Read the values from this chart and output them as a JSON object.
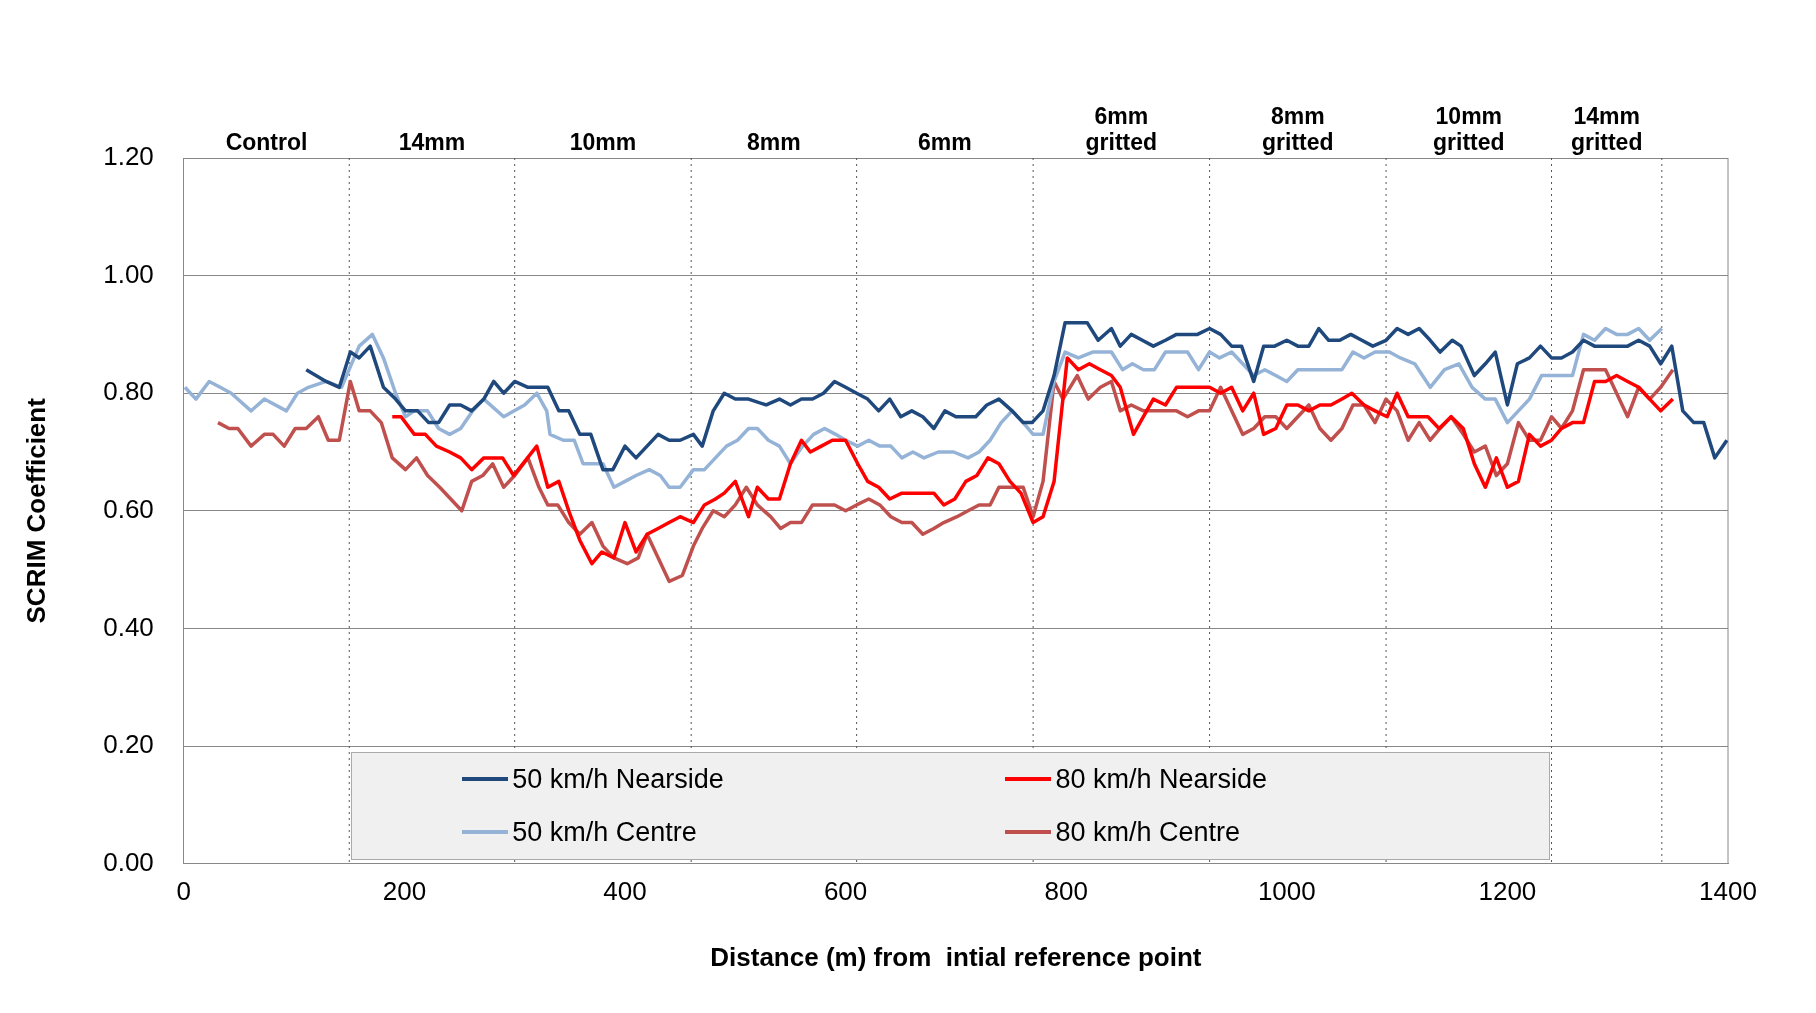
{
  "chart_data": {
    "type": "line",
    "xlabel": "Distance (m) from  intial reference point",
    "ylabel": "SCRIM Coefficient",
    "xlim": [
      0,
      1400
    ],
    "xticks": [
      0,
      200,
      400,
      600,
      800,
      1000,
      1200,
      1400
    ],
    "ylim": [
      0,
      1.2
    ],
    "yticks": [
      {
        "value": 0,
        "label": "0.00"
      },
      {
        "value": 0.2,
        "label": "0.20"
      },
      {
        "value": 0.4,
        "label": "0.40"
      },
      {
        "value": 0.6,
        "label": "0.60"
      },
      {
        "value": 0.8,
        "label": "0.80"
      },
      {
        "value": 1,
        "label": "1.00"
      },
      {
        "value": 1.2,
        "label": "1.20"
      }
    ],
    "grid": "y",
    "legend": "bottom",
    "marker": "none",
    "line_style": "solid",
    "ref_lines": [
      {
        "axis": "x",
        "value": 150,
        "line_style": "dotted"
      },
      {
        "axis": "x",
        "value": 300,
        "line_style": "dotted"
      },
      {
        "axis": "x",
        "value": 460,
        "line_style": "dotted"
      },
      {
        "axis": "x",
        "value": 610,
        "line_style": "dotted"
      },
      {
        "axis": "x",
        "value": 770,
        "line_style": "dotted"
      },
      {
        "axis": "x",
        "value": 930,
        "line_style": "dotted"
      },
      {
        "axis": "x",
        "value": 1090,
        "line_style": "dotted"
      },
      {
        "axis": "x",
        "value": 1240,
        "line_style": "dotted"
      },
      {
        "axis": "x",
        "value": 1340,
        "line_style": "dotted"
      }
    ],
    "annotations": [
      "Control",
      "14mm",
      "10mm",
      "8mm",
      "6mm",
      "6mm gritted",
      "8mm gritted",
      "10mm gritted",
      "14mm gritted"
    ],
    "series": [
      {
        "name": "50 km/h Nearside",
        "color": "#1f497d",
        "x": [
          111,
          129,
          141,
          151,
          159,
          169,
          181,
          192,
          201,
          212,
          222,
          231,
          241,
          251,
          261,
          272,
          281,
          290,
          300,
          312,
          320,
          330,
          340,
          349,
          359,
          369,
          380,
          389,
          400,
          410,
          420,
          430,
          440,
          450,
          462,
          470,
          480,
          490,
          500,
          512,
          528,
          540,
          550,
          560,
          570,
          580,
          590,
          600,
          610,
          620,
          630,
          640,
          650,
          660,
          670,
          680,
          690,
          700,
          709,
          718,
          728,
          739,
          751,
          761,
          769,
          779,
          789,
          799,
          819,
          829,
          841,
          849,
          859,
          869,
          879,
          890,
          900,
          919,
          930,
          940,
          950,
          959,
          970,
          979,
          989,
          1000,
          1010,
          1020,
          1029,
          1038,
          1048,
          1058,
          1068,
          1078,
          1090,
          1100,
          1110,
          1120,
          1130,
          1139,
          1150,
          1158,
          1170,
          1180,
          1189,
          1200,
          1209,
          1220,
          1230,
          1240,
          1249,
          1259,
          1269,
          1279,
          1289,
          1299,
          1309,
          1319,
          1329,
          1339,
          1349,
          1359,
          1369,
          1378,
          1388,
          1399
        ],
        "values": [
          0.84,
          0.82,
          0.81,
          0.87,
          0.86,
          0.88,
          0.81,
          0.79,
          0.77,
          0.77,
          0.75,
          0.75,
          0.78,
          0.78,
          0.77,
          0.79,
          0.82,
          0.8,
          0.82,
          0.81,
          0.81,
          0.81,
          0.77,
          0.77,
          0.73,
          0.73,
          0.67,
          0.67,
          0.71,
          0.69,
          0.71,
          0.73,
          0.72,
          0.72,
          0.73,
          0.71,
          0.77,
          0.8,
          0.79,
          0.79,
          0.78,
          0.79,
          0.78,
          0.79,
          0.79,
          0.8,
          0.82,
          0.81,
          0.8,
          0.79,
          0.77,
          0.79,
          0.76,
          0.77,
          0.76,
          0.74,
          0.77,
          0.76,
          0.76,
          0.76,
          0.78,
          0.79,
          0.77,
          0.75,
          0.75,
          0.77,
          0.83,
          0.92,
          0.92,
          0.89,
          0.91,
          0.88,
          0.9,
          0.89,
          0.88,
          0.89,
          0.9,
          0.9,
          0.91,
          0.9,
          0.88,
          0.88,
          0.82,
          0.88,
          0.88,
          0.89,
          0.88,
          0.88,
          0.91,
          0.89,
          0.89,
          0.9,
          0.89,
          0.88,
          0.89,
          0.91,
          0.9,
          0.91,
          0.89,
          0.87,
          0.89,
          0.88,
          0.83,
          0.85,
          0.87,
          0.78,
          0.85,
          0.86,
          0.88,
          0.86,
          0.86,
          0.87,
          0.89,
          0.88,
          0.88,
          0.88,
          0.88,
          0.89,
          0.88,
          0.85,
          0.88,
          0.77,
          0.75,
          0.75,
          0.69,
          0.72
        ]
      },
      {
        "name": "80 km/h Nearside",
        "color": "#ff0000",
        "x": [
          189,
          197,
          209,
          219,
          229,
          241,
          251,
          261,
          272,
          289,
          299,
          320,
          330,
          340,
          349,
          359,
          370,
          379,
          390,
          400,
          410,
          420,
          430,
          440,
          450,
          462,
          472,
          482,
          490,
          500,
          512,
          520,
          530,
          540,
          550,
          560,
          568,
          578,
          588,
          600,
          611,
          620,
          630,
          640,
          651,
          663,
          680,
          689,
          699,
          709,
          719,
          729,
          739,
          749,
          759,
          770,
          779,
          789,
          801,
          811,
          821,
          831,
          841,
          849,
          861,
          870,
          879,
          890,
          900,
          910,
          920,
          930,
          940,
          950,
          960,
          970,
          979,
          990,
          1000,
          1010,
          1020,
          1030,
          1040,
          1050,
          1059,
          1070,
          1080,
          1091,
          1100,
          1110,
          1128,
          1138,
          1149,
          1160,
          1170,
          1180,
          1190,
          1200,
          1210,
          1220,
          1230,
          1240,
          1249,
          1259,
          1269,
          1279,
          1289,
          1299,
          1309,
          1319,
          1329,
          1339,
          1350
        ],
        "values": [
          0.76,
          0.76,
          0.73,
          0.73,
          0.71,
          0.7,
          0.69,
          0.67,
          0.69,
          0.69,
          0.66,
          0.71,
          0.64,
          0.65,
          0.6,
          0.55,
          0.51,
          0.53,
          0.52,
          0.58,
          0.53,
          0.56,
          0.57,
          0.58,
          0.59,
          0.58,
          0.61,
          0.62,
          0.63,
          0.65,
          0.59,
          0.64,
          0.62,
          0.62,
          0.68,
          0.72,
          0.7,
          0.71,
          0.72,
          0.72,
          0.68,
          0.65,
          0.64,
          0.62,
          0.63,
          0.63,
          0.63,
          0.61,
          0.62,
          0.65,
          0.66,
          0.69,
          0.68,
          0.65,
          0.63,
          0.58,
          0.59,
          0.65,
          0.86,
          0.84,
          0.85,
          0.84,
          0.83,
          0.81,
          0.73,
          0.76,
          0.79,
          0.78,
          0.81,
          0.81,
          0.81,
          0.81,
          0.8,
          0.81,
          0.77,
          0.8,
          0.73,
          0.74,
          0.78,
          0.78,
          0.77,
          0.78,
          0.78,
          0.79,
          0.8,
          0.78,
          0.77,
          0.76,
          0.8,
          0.76,
          0.76,
          0.74,
          0.76,
          0.74,
          0.68,
          0.64,
          0.69,
          0.64,
          0.65,
          0.73,
          0.71,
          0.72,
          0.74,
          0.75,
          0.75,
          0.82,
          0.82,
          0.83,
          0.82,
          0.81,
          0.79,
          0.77,
          0.79
        ]
      },
      {
        "name": "50 km/h Centre",
        "color": "#95b3d7",
        "x": [
          1,
          11,
          23,
          33,
          43,
          61,
          73,
          93,
          103,
          113,
          129,
          143,
          159,
          171,
          181,
          192,
          201,
          209,
          221,
          231,
          241,
          251,
          262,
          272,
          290,
          309,
          320,
          329,
          332,
          344,
          354,
          362,
          380,
          390,
          400,
          410,
          422,
          432,
          440,
          450,
          462,
          472,
          482,
          492,
          502,
          512,
          520,
          530,
          540,
          550,
          561,
          571,
          581,
          591,
          600,
          611,
          621,
          631,
          641,
          651,
          661,
          671,
          684,
          698,
          711,
          721,
          731,
          741,
          751,
          761,
          770,
          779,
          789,
          799,
          811,
          824,
          841,
          851,
          860,
          870,
          880,
          890,
          900,
          910,
          920,
          930,
          939,
          950,
          960,
          970,
          980,
          990,
          1000,
          1010,
          1020,
          1038,
          1050,
          1060,
          1070,
          1080,
          1093,
          1103,
          1116,
          1130,
          1143,
          1156,
          1168,
          1180,
          1189,
          1200,
          1210,
          1220,
          1231,
          1249,
          1259,
          1269,
          1279,
          1289,
          1299,
          1309,
          1319,
          1329,
          1340
        ],
        "values": [
          0.81,
          0.79,
          0.82,
          0.81,
          0.8,
          0.77,
          0.79,
          0.77,
          0.8,
          0.81,
          0.82,
          0.81,
          0.88,
          0.9,
          0.86,
          0.8,
          0.76,
          0.77,
          0.77,
          0.74,
          0.73,
          0.74,
          0.77,
          0.79,
          0.76,
          0.78,
          0.8,
          0.77,
          0.73,
          0.72,
          0.72,
          0.68,
          0.68,
          0.64,
          0.65,
          0.66,
          0.67,
          0.66,
          0.64,
          0.64,
          0.67,
          0.67,
          0.69,
          0.71,
          0.72,
          0.74,
          0.74,
          0.72,
          0.71,
          0.68,
          0.71,
          0.73,
          0.74,
          0.73,
          0.72,
          0.71,
          0.72,
          0.71,
          0.71,
          0.69,
          0.7,
          0.69,
          0.7,
          0.7,
          0.69,
          0.7,
          0.72,
          0.75,
          0.77,
          0.75,
          0.73,
          0.73,
          0.82,
          0.87,
          0.86,
          0.87,
          0.87,
          0.84,
          0.85,
          0.84,
          0.84,
          0.87,
          0.87,
          0.87,
          0.84,
          0.87,
          0.86,
          0.87,
          0.85,
          0.83,
          0.84,
          0.83,
          0.82,
          0.84,
          0.84,
          0.84,
          0.84,
          0.87,
          0.86,
          0.87,
          0.87,
          0.86,
          0.85,
          0.81,
          0.84,
          0.85,
          0.81,
          0.79,
          0.79,
          0.75,
          0.77,
          0.79,
          0.83,
          0.83,
          0.83,
          0.9,
          0.89,
          0.91,
          0.9,
          0.9,
          0.91,
          0.89,
          0.91
        ]
      },
      {
        "name": "80 km/h Centre",
        "color": "#c0504d",
        "x": [
          31,
          41,
          49,
          61,
          73,
          81,
          91,
          101,
          111,
          122,
          131,
          141,
          151,
          159,
          169,
          179,
          189,
          201,
          211,
          221,
          232,
          242,
          252,
          261,
          271,
          280,
          290,
          300,
          312,
          322,
          330,
          339,
          349,
          359,
          370,
          380,
          390,
          402,
          412,
          420,
          430,
          440,
          452,
          462,
          470,
          480,
          490,
          500,
          510,
          520,
          532,
          541,
          550,
          560,
          570,
          580,
          590,
          600,
          610,
          621,
          631,
          641,
          651,
          660,
          670,
          680,
          689,
          701,
          711,
          721,
          731,
          739,
          751,
          761,
          770,
          779,
          789,
          797,
          810,
          820,
          831,
          841,
          849,
          859,
          870,
          882,
          890,
          900,
          910,
          920,
          930,
          940,
          950,
          960,
          970,
          980,
          990,
          1000,
          1010,
          1020,
          1030,
          1040,
          1050,
          1060,
          1070,
          1080,
          1090,
          1100,
          1110,
          1120,
          1130,
          1139,
          1149,
          1160,
          1170,
          1180,
          1190,
          1200,
          1210,
          1220,
          1230,
          1240,
          1249,
          1259,
          1269,
          1279,
          1289,
          1299,
          1309,
          1319,
          1329,
          1339,
          1350
        ],
        "values": [
          0.75,
          0.74,
          0.74,
          0.71,
          0.73,
          0.73,
          0.71,
          0.74,
          0.74,
          0.76,
          0.72,
          0.72,
          0.82,
          0.77,
          0.77,
          0.75,
          0.69,
          0.67,
          0.69,
          0.66,
          0.64,
          0.62,
          0.6,
          0.65,
          0.66,
          0.68,
          0.64,
          0.66,
          0.69,
          0.64,
          0.61,
          0.61,
          0.58,
          0.56,
          0.58,
          0.54,
          0.52,
          0.51,
          0.52,
          0.56,
          0.52,
          0.48,
          0.49,
          0.54,
          0.57,
          0.6,
          0.59,
          0.61,
          0.64,
          0.61,
          0.59,
          0.57,
          0.58,
          0.58,
          0.61,
          0.61,
          0.61,
          0.6,
          0.61,
          0.62,
          0.61,
          0.59,
          0.58,
          0.58,
          0.56,
          0.57,
          0.58,
          0.59,
          0.6,
          0.61,
          0.61,
          0.64,
          0.64,
          0.64,
          0.59,
          0.65,
          0.82,
          0.79,
          0.83,
          0.79,
          0.81,
          0.82,
          0.77,
          0.78,
          0.77,
          0.77,
          0.77,
          0.77,
          0.76,
          0.77,
          0.77,
          0.81,
          0.77,
          0.73,
          0.74,
          0.76,
          0.76,
          0.74,
          0.76,
          0.78,
          0.74,
          0.72,
          0.74,
          0.78,
          0.78,
          0.75,
          0.79,
          0.77,
          0.72,
          0.75,
          0.72,
          0.74,
          0.76,
          0.73,
          0.7,
          0.71,
          0.66,
          0.68,
          0.75,
          0.72,
          0.72,
          0.76,
          0.74,
          0.77,
          0.84,
          0.84,
          0.84,
          0.8,
          0.76,
          0.81,
          0.79,
          0.81,
          0.84
        ]
      }
    ]
  }
}
